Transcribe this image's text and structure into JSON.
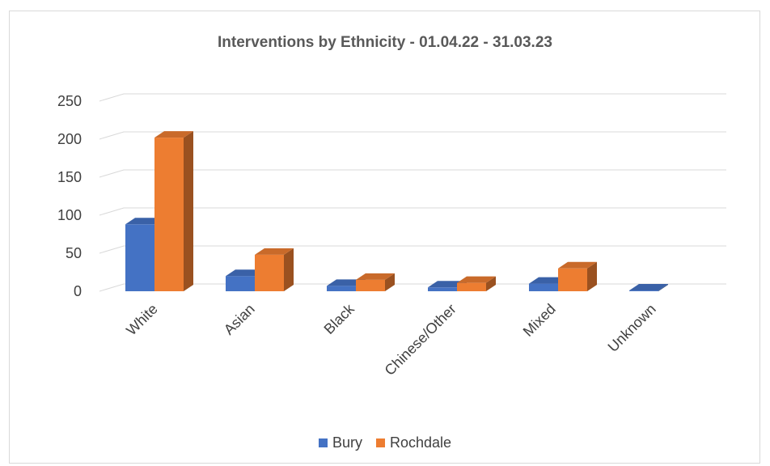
{
  "chart_data": {
    "type": "bar",
    "title": "Interventions by Ethnicity - 01.04.22 - 31.03.23",
    "categories": [
      "White",
      "Asian",
      "Black",
      "Chinese/Other",
      "Mixed",
      "Unknown"
    ],
    "series": [
      {
        "name": "Bury",
        "values": [
          88,
          20,
          7,
          5,
          10,
          1
        ],
        "color": "#4472C4"
      },
      {
        "name": "Rochdale",
        "values": [
          202,
          48,
          15,
          11,
          30,
          0
        ],
        "color": "#ED7D31"
      }
    ],
    "yticks": [
      "0",
      "50",
      "100",
      "150",
      "200",
      "250"
    ],
    "ylim": [
      0,
      250
    ],
    "grid": true,
    "legend_position": "bottom"
  }
}
